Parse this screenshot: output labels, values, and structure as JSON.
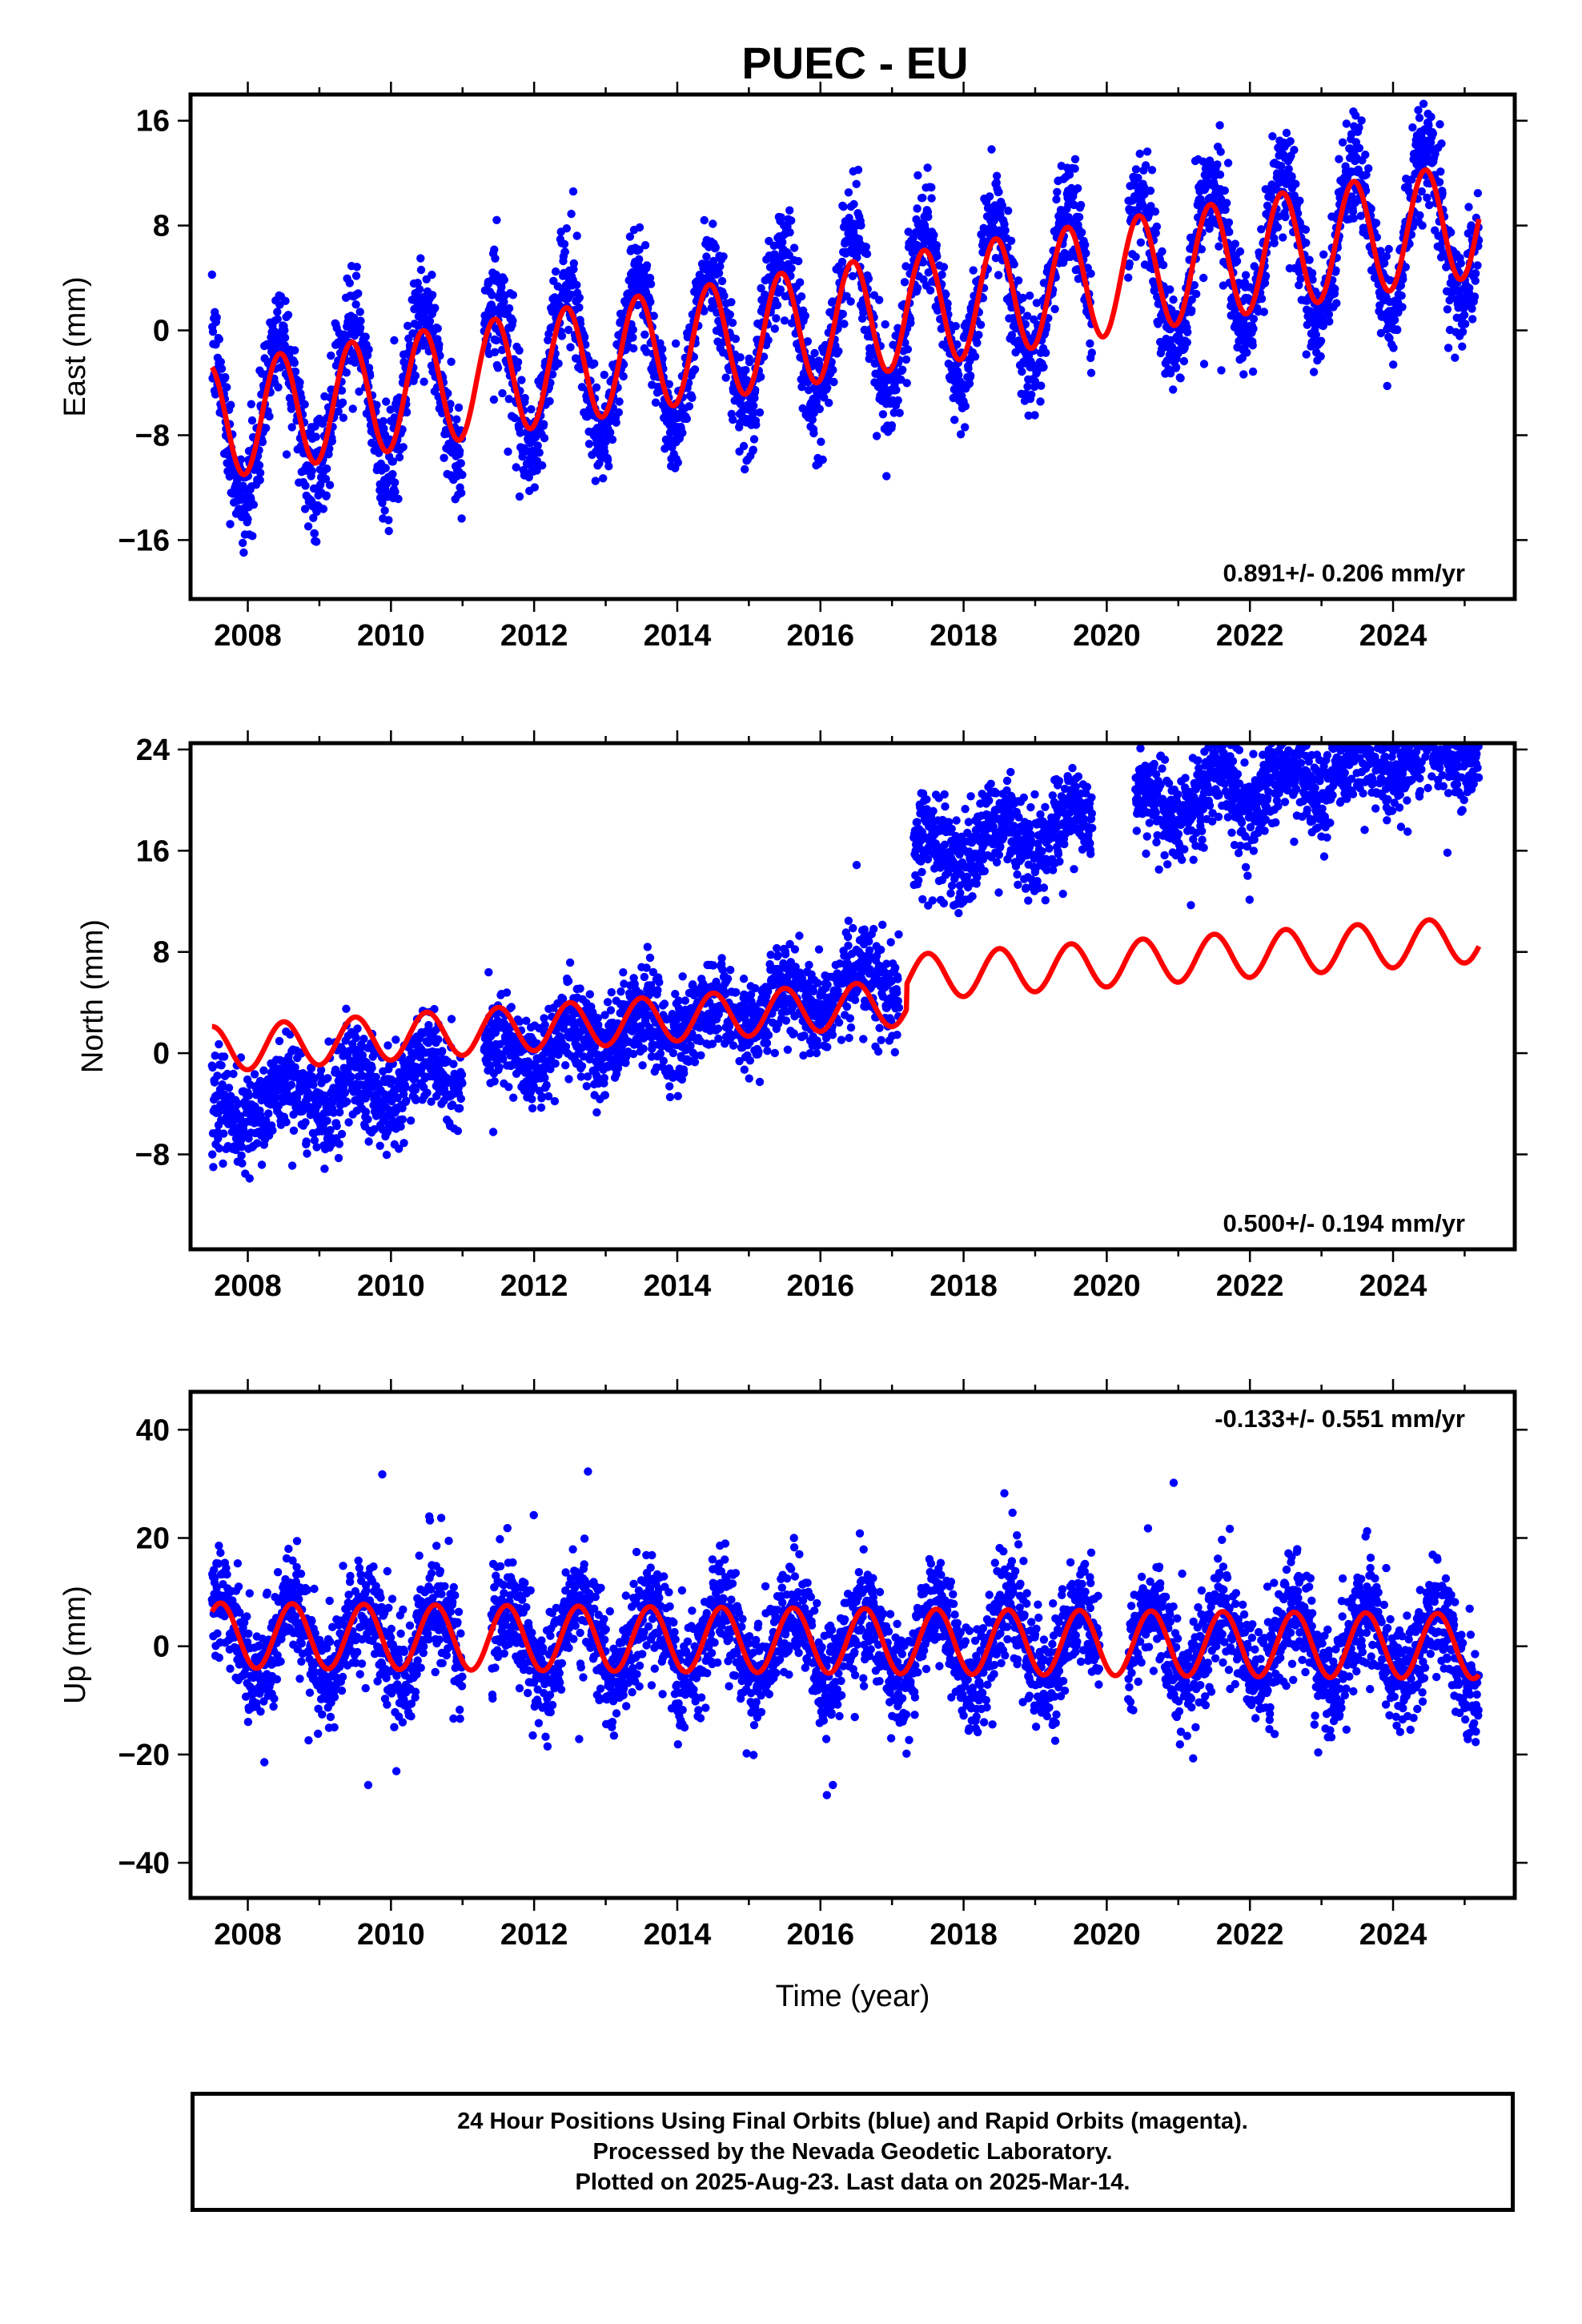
{
  "title": "PUEC - EU",
  "xlabel": "Time (year)",
  "footer": {
    "line1": "24 Hour Positions Using Final Orbits (blue) and Rapid Orbits (magenta).",
    "line2": "Processed by the Nevada Geodetic Laboratory.",
    "line3": "Plotted on 2025-Aug-23. Last data on 2025-Mar-14."
  },
  "colors": {
    "data_points": "#0000ff",
    "model_fit": "#ff0000",
    "axes": "#000000"
  },
  "chart_data": [
    {
      "type": "scatter",
      "component": "east",
      "ylabel": "East (mm)",
      "rate_text": "0.891+/- 0.206 mm/yr",
      "rate_position": "bottom-right",
      "xlim": [
        2007.2,
        2025.7
      ],
      "ylim": [
        -20.5,
        18.0
      ],
      "xticks": [
        2008,
        2010,
        2012,
        2014,
        2016,
        2018,
        2020,
        2022,
        2024
      ],
      "xtick_labels": [
        "2008",
        "2010",
        "2012",
        "2014",
        "2016",
        "2018",
        "2020",
        "2022",
        "2024"
      ],
      "yticks": [
        -16,
        -8,
        0,
        8,
        16
      ],
      "ytick_labels": [
        "−16",
        "−8",
        "0",
        "8",
        "16"
      ],
      "data_range": [
        2007.5,
        2025.2
      ],
      "series": [
        {
          "kind": "points",
          "color": "#0000ff",
          "trend_start": -7.0,
          "trend_end": 8.5,
          "annual_amplitude": 6.0,
          "peak_phase": 0.45,
          "scatter_sd": 2.0,
          "gaps": [
            [
              2011.0,
              2011.3
            ],
            [
              2019.8,
              2020.3
            ]
          ],
          "steps": []
        },
        {
          "kind": "model",
          "color": "#ff0000",
          "trend_start": -7.0,
          "trend_end": 8.5,
          "annual_amplitude": 4.4,
          "peak_phase": 0.45,
          "steps": []
        }
      ]
    },
    {
      "type": "scatter",
      "component": "north",
      "ylabel": "North (mm)",
      "rate_text": "0.500+/- 0.194 mm/yr",
      "rate_position": "bottom-right",
      "xlim": [
        2007.2,
        2025.7
      ],
      "ylim": [
        -15.5,
        24.5
      ],
      "xticks": [
        2008,
        2010,
        2012,
        2014,
        2016,
        2018,
        2020,
        2022,
        2024
      ],
      "xtick_labels": [
        "2008",
        "2010",
        "2012",
        "2014",
        "2016",
        "2018",
        "2020",
        "2022",
        "2024"
      ],
      "yticks": [
        -8,
        0,
        8,
        16,
        24
      ],
      "ytick_labels": [
        "−8",
        "0",
        "8",
        "16",
        "24"
      ],
      "data_range": [
        2007.5,
        2025.2
      ],
      "series": [
        {
          "kind": "points",
          "color": "#0000ff",
          "trend_start": -5.0,
          "trend_end": 15.0,
          "annual_amplitude": 1.4,
          "peak_phase": 0.5,
          "scatter_sd": 1.8,
          "gaps": [
            [
              2011.0,
              2011.3
            ],
            [
              2017.1,
              2017.3
            ],
            [
              2019.8,
              2020.4
            ]
          ],
          "steps": [
            [
              2017.2,
              9.5
            ]
          ]
        },
        {
          "kind": "model",
          "color": "#ff0000",
          "trend_start": 0.3,
          "trend_end": 7.0,
          "annual_amplitude": 1.8,
          "peak_phase": 0.5,
          "steps": [
            [
              2017.2,
              2.0
            ]
          ]
        }
      ]
    },
    {
      "type": "scatter",
      "component": "up",
      "ylabel": "Up (mm)",
      "rate_text": "-0.133+/- 0.551 mm/yr",
      "rate_position": "top-right",
      "xlim": [
        2007.2,
        2025.7
      ],
      "ylim": [
        -46.5,
        47.0
      ],
      "xticks": [
        2008,
        2010,
        2012,
        2014,
        2016,
        2018,
        2020,
        2022,
        2024
      ],
      "xtick_labels": [
        "2008",
        "2010",
        "2012",
        "2014",
        "2016",
        "2018",
        "2020",
        "2022",
        "2024"
      ],
      "yticks": [
        -40,
        -20,
        0,
        20,
        40
      ],
      "ytick_labels": [
        "−40",
        "−20",
        "0",
        "20",
        "40"
      ],
      "data_range": [
        2007.5,
        2025.2
      ],
      "series": [
        {
          "kind": "points",
          "color": "#0000ff",
          "trend_start": 1.5,
          "trend_end": -0.5,
          "annual_amplitude": 7.0,
          "peak_phase": 0.62,
          "scatter_sd": 5.0,
          "gaps": [
            [
              2011.0,
              2011.4
            ],
            [
              2019.9,
              2020.3
            ]
          ],
          "steps": []
        },
        {
          "kind": "model",
          "color": "#ff0000",
          "trend_start": 2.0,
          "trend_end": 0.0,
          "annual_amplitude": 6.0,
          "peak_phase": 0.62,
          "steps": []
        }
      ]
    }
  ]
}
